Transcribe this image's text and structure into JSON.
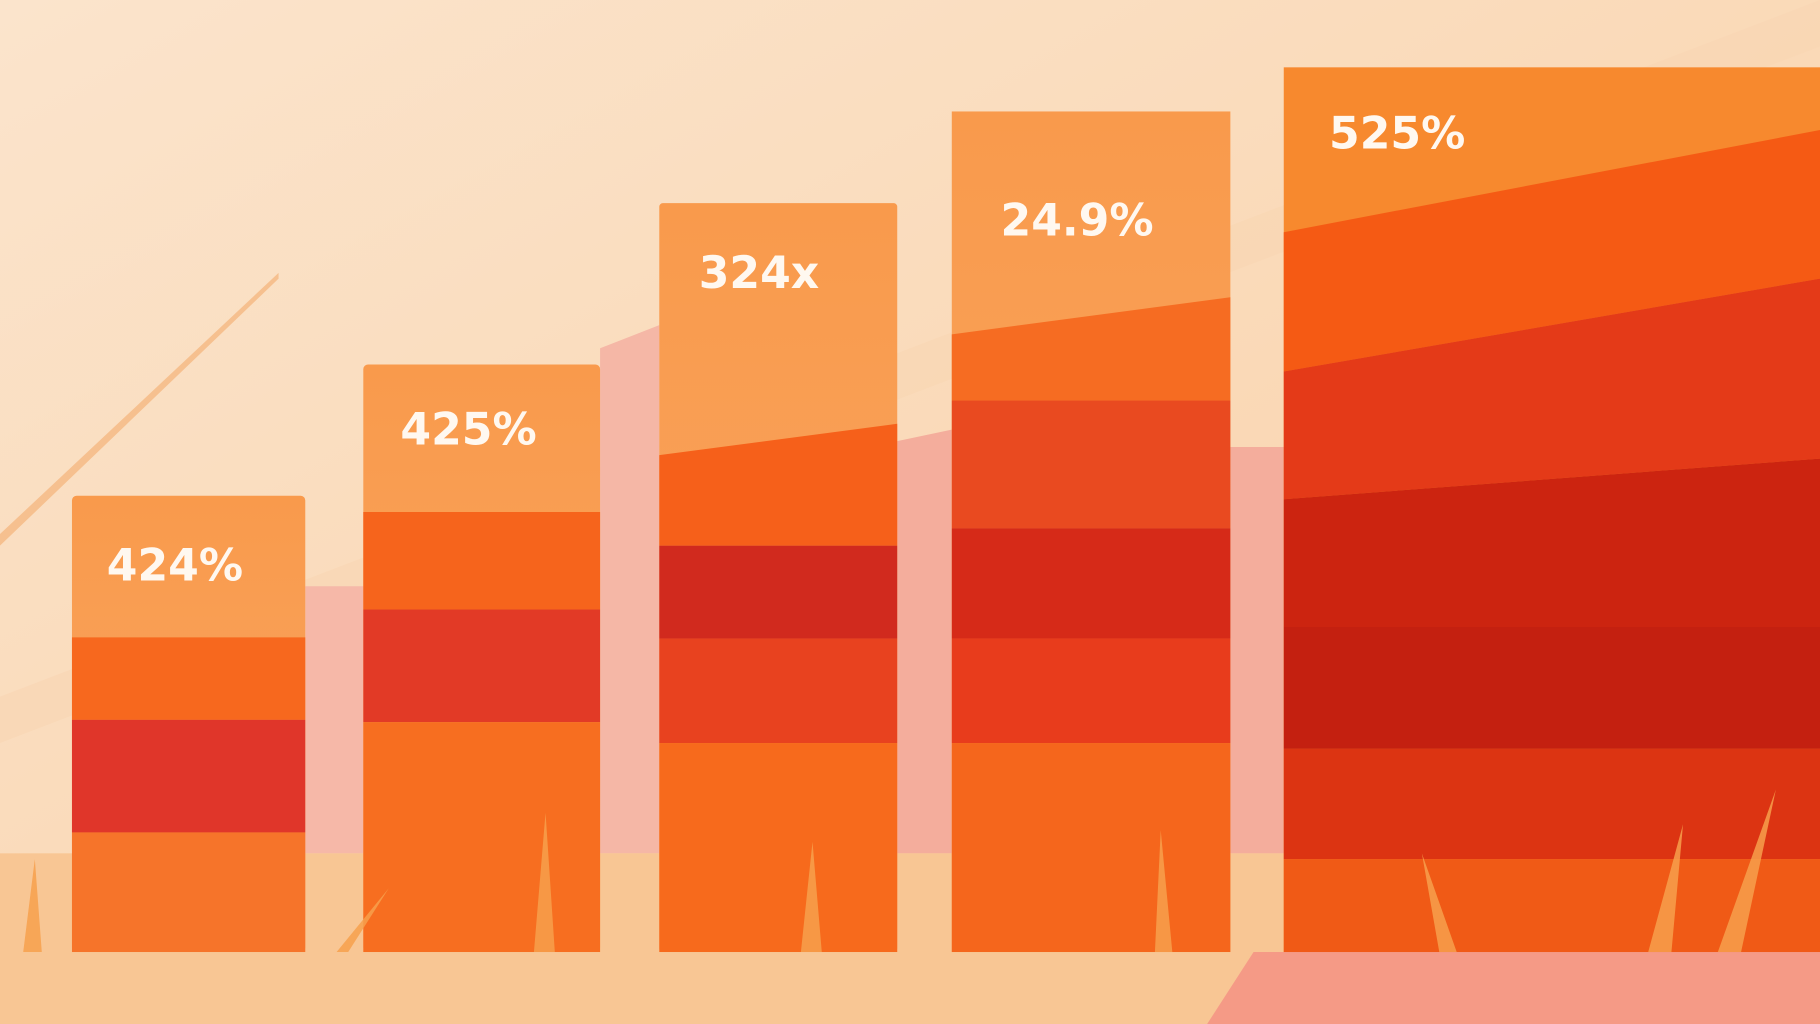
{
  "bars": [
    {
      "label": "424%"
    },
    {
      "label": "425%"
    },
    {
      "label": "324x"
    },
    {
      "label": "24.9%"
    },
    {
      "label": "525%"
    }
  ]
}
